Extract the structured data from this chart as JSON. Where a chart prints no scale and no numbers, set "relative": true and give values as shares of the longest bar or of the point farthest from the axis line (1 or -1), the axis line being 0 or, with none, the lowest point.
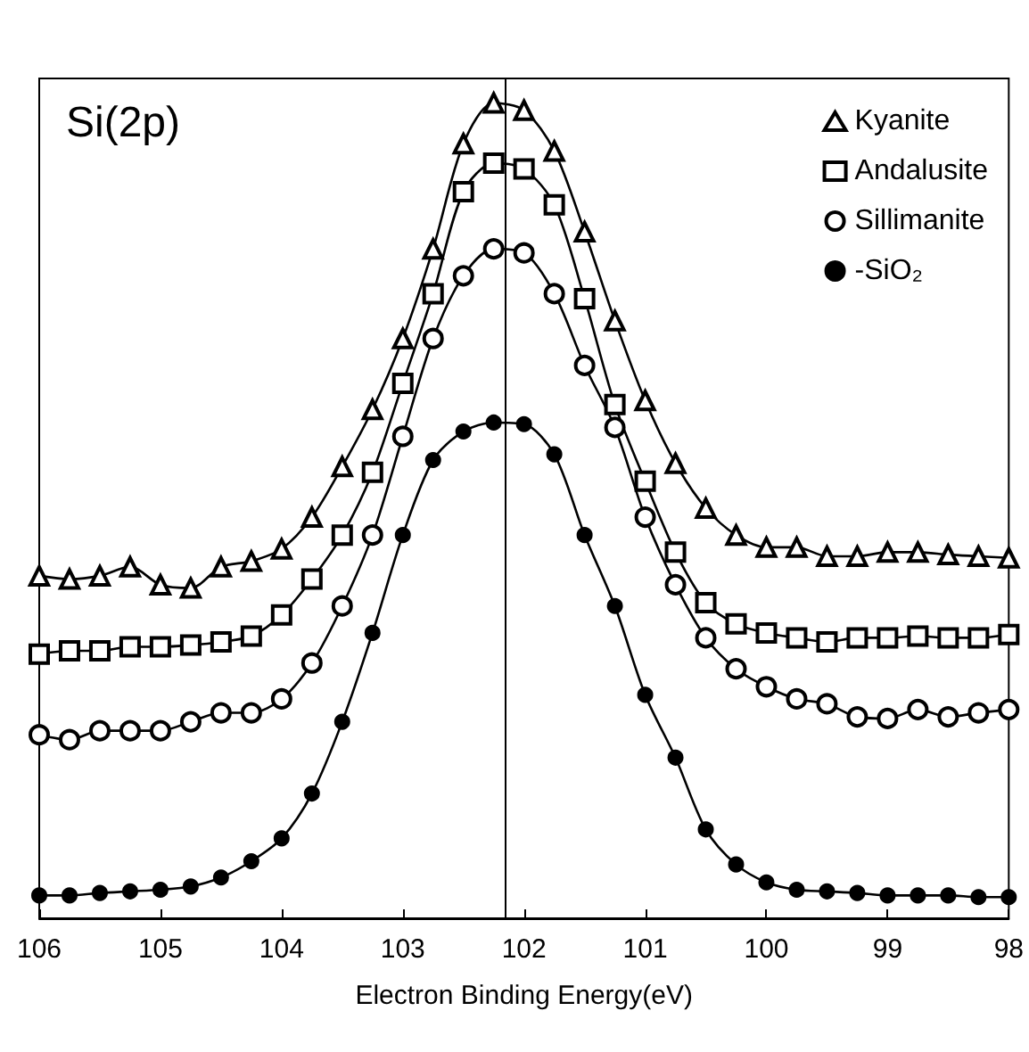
{
  "chart_data": {
    "type": "line",
    "title": "Si(2p)",
    "xlabel": "Electron Binding Energy(eV)",
    "x": [
      106,
      105.75,
      105.5,
      105.25,
      105,
      104.75,
      104.5,
      104.25,
      104,
      103.75,
      103.5,
      103.25,
      103,
      102.75,
      102.5,
      102.25,
      102,
      101.75,
      101.5,
      101.25,
      101,
      100.75,
      100.5,
      100.25,
      100,
      99.75,
      99.5,
      99.25,
      99,
      98.75,
      98.5,
      98.25,
      98
    ],
    "relative": true,
    "xlim": [
      106,
      98
    ],
    "xticks": [
      106,
      105,
      104,
      103,
      102,
      101,
      100,
      99,
      98
    ],
    "grid": false,
    "legend": "top right",
    "ref_lines": [
      {
        "axis": "x",
        "value": 102.15,
        "color": "#000000"
      }
    ],
    "series": [
      {
        "name": "Kyanite",
        "color": "#000000",
        "marker": "triangle",
        "values": [
          0.42,
          0.416,
          0.42,
          0.431,
          0.409,
          0.405,
          0.431,
          0.438,
          0.453,
          0.492,
          0.554,
          0.624,
          0.711,
          0.821,
          0.95,
          1.0,
          0.991,
          0.941,
          0.842,
          0.733,
          0.635,
          0.558,
          0.503,
          0.47,
          0.455,
          0.455,
          0.444,
          0.444,
          0.449,
          0.449,
          0.446,
          0.444,
          0.442
        ]
      },
      {
        "name": "Andalusite",
        "color": "#000000",
        "marker": "square",
        "values": [
          0.324,
          0.328,
          0.328,
          0.333,
          0.333,
          0.335,
          0.339,
          0.346,
          0.372,
          0.416,
          0.47,
          0.547,
          0.656,
          0.766,
          0.891,
          0.926,
          0.919,
          0.875,
          0.76,
          0.63,
          0.536,
          0.449,
          0.387,
          0.361,
          0.35,
          0.344,
          0.339,
          0.344,
          0.344,
          0.346,
          0.344,
          0.344,
          0.348
        ]
      },
      {
        "name": "Sillimanite",
        "color": "#000000",
        "marker": "circle",
        "values": [
          0.225,
          0.219,
          0.23,
          0.23,
          0.23,
          0.241,
          0.252,
          0.252,
          0.269,
          0.313,
          0.383,
          0.47,
          0.591,
          0.711,
          0.788,
          0.821,
          0.816,
          0.766,
          0.678,
          0.602,
          0.492,
          0.409,
          0.344,
          0.306,
          0.284,
          0.269,
          0.263,
          0.247,
          0.245,
          0.256,
          0.247,
          0.252,
          0.256
        ]
      },
      {
        "name": "-SiO₂",
        "color": "#000000",
        "marker": "circle",
        "values": [
          0.028,
          0.028,
          0.031,
          0.033,
          0.035,
          0.039,
          0.05,
          0.07,
          0.098,
          0.153,
          0.241,
          0.35,
          0.47,
          0.562,
          0.597,
          0.608,
          0.606,
          0.569,
          0.47,
          0.383,
          0.274,
          0.197,
          0.109,
          0.066,
          0.044,
          0.035,
          0.033,
          0.031,
          0.028,
          0.028,
          0.028,
          0.026,
          0.026
        ]
      }
    ]
  }
}
